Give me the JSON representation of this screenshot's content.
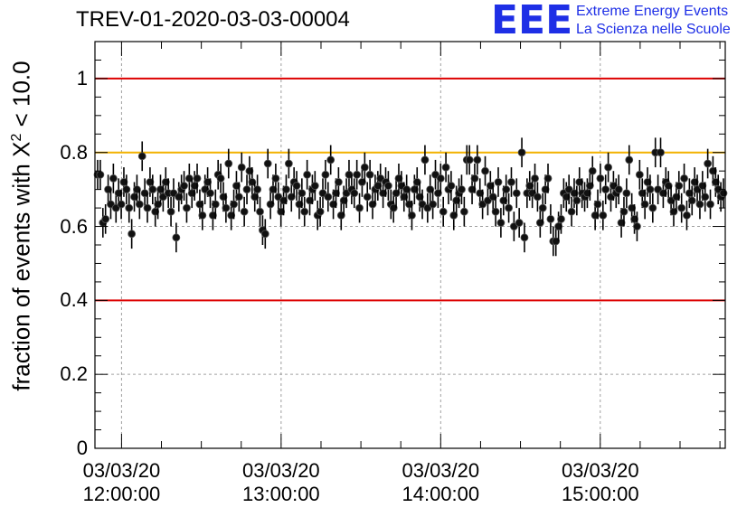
{
  "chart_data": {
    "type": "scatter",
    "title": "TREV-01-2020-03-03-00004",
    "ylabel_parts": [
      "fraction of events with X",
      "2",
      " < 10.0"
    ],
    "xlabel": "",
    "xlim": [
      "2020-03-03 11:50:00",
      "2020-03-03 15:47:00"
    ],
    "ylim": [
      0,
      1.1
    ],
    "y_ticks": [
      "0",
      "0.2",
      "0.4",
      "0.6",
      "0.8",
      "1"
    ],
    "x_ticks": [
      {
        "date": "03/03/20",
        "time": "12:00:00"
      },
      {
        "date": "03/03/20",
        "time": "13:00:00"
      },
      {
        "date": "03/03/20",
        "time": "14:00:00"
      },
      {
        "date": "03/03/20",
        "time": "15:00:00"
      }
    ],
    "grid": true,
    "reference_lines": [
      {
        "y": 1.0,
        "color": "#dd0000"
      },
      {
        "y": 0.8,
        "color": "#f2b200"
      },
      {
        "y": 0.4,
        "color": "#dd0000"
      }
    ],
    "series": [
      {
        "error": 0.04,
        "values": [
          0.74,
          0.74,
          0.61,
          0.62,
          0.7,
          0.66,
          0.73,
          0.65,
          0.69,
          0.66,
          0.72,
          0.7,
          0.65,
          0.58,
          0.68,
          0.7,
          0.66,
          0.79,
          0.69,
          0.65,
          0.72,
          0.7,
          0.64,
          0.66,
          0.7,
          0.68,
          0.72,
          0.69,
          0.64,
          0.69,
          0.57,
          0.68,
          0.7,
          0.71,
          0.65,
          0.73,
          0.69,
          0.71,
          0.73,
          0.66,
          0.63,
          0.7,
          0.72,
          0.69,
          0.63,
          0.66,
          0.74,
          0.73,
          0.68,
          0.65,
          0.77,
          0.63,
          0.66,
          0.71,
          0.68,
          0.76,
          0.64,
          0.7,
          0.75,
          0.72,
          0.68,
          0.7,
          0.64,
          0.59,
          0.58,
          0.77,
          0.66,
          0.7,
          0.73,
          0.68,
          0.64,
          0.67,
          0.7,
          0.77,
          0.68,
          0.72,
          0.71,
          0.66,
          0.69,
          0.64,
          0.74,
          0.67,
          0.7,
          0.71,
          0.63,
          0.64,
          0.69,
          0.74,
          0.68,
          0.78,
          0.66,
          0.69,
          0.72,
          0.63,
          0.67,
          0.69,
          0.74,
          0.7,
          0.69,
          0.74,
          0.65,
          0.72,
          0.76,
          0.68,
          0.74,
          0.66,
          0.7,
          0.71,
          0.73,
          0.69,
          0.72,
          0.71,
          0.66,
          0.65,
          0.69,
          0.73,
          0.71,
          0.68,
          0.7,
          0.66,
          0.63,
          0.7,
          0.72,
          0.68,
          0.66,
          0.78,
          0.65,
          0.7,
          0.66,
          0.74,
          0.69,
          0.73,
          0.64,
          0.76,
          0.7,
          0.71,
          0.63,
          0.67,
          0.69,
          0.7,
          0.64,
          0.78,
          0.78,
          0.7,
          0.73,
          0.78,
          0.69,
          0.66,
          0.75,
          0.67,
          0.71,
          0.68,
          0.64,
          0.72,
          0.61,
          0.67,
          0.7,
          0.65,
          0.72,
          0.6,
          0.69,
          0.61,
          0.8,
          0.57,
          0.69,
          0.71,
          0.69,
          0.73,
          0.68,
          0.61,
          0.65,
          0.7,
          0.73,
          0.62,
          0.56,
          0.56,
          0.6,
          0.62,
          0.69,
          0.68,
          0.7,
          0.64,
          0.69,
          0.67,
          0.72,
          0.69,
          0.68,
          0.69,
          0.71,
          0.75,
          0.63,
          0.66,
          0.73,
          0.63,
          0.7,
          0.76,
          0.68,
          0.71,
          0.69,
          0.7,
          0.61,
          0.64,
          0.69,
          0.78,
          0.65,
          0.62,
          0.6,
          0.74,
          0.69,
          0.66,
          0.72,
          0.7,
          0.65,
          0.8,
          0.7,
          0.8,
          0.69,
          0.72,
          0.71,
          0.67,
          0.64,
          0.68,
          0.71,
          0.65,
          0.73,
          0.63,
          0.69,
          0.67,
          0.72,
          0.7,
          0.66,
          0.71,
          0.68,
          0.77,
          0.66,
          0.75,
          0.72,
          0.7,
          0.68,
          0.69
        ]
      }
    ]
  },
  "logo": {
    "mark": "EEE",
    "line1": "Extreme Energy Events",
    "line2": "La Scienza nelle Scuole",
    "color": "#1e2fe6"
  }
}
